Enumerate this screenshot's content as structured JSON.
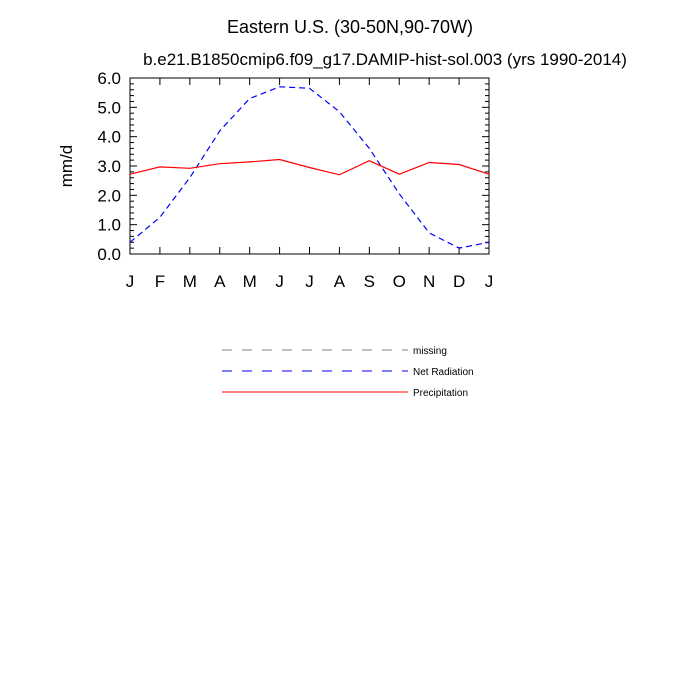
{
  "chart_data": {
    "type": "line",
    "title": "Eastern U.S. (30-50N,90-70W)",
    "subtitle": "b.e21.B1850cmip6.f09_g17.DAMIP-hist-sol.003 (yrs 1990-2014)",
    "ylabel": "mm/d",
    "xlabel": "",
    "categories": [
      "J",
      "F",
      "M",
      "A",
      "M",
      "J",
      "J",
      "A",
      "S",
      "O",
      "N",
      "D",
      "J"
    ],
    "ylim": [
      0,
      6
    ],
    "yticks": [
      "0.0",
      "1.0",
      "2.0",
      "3.0",
      "4.0",
      "5.0",
      "6.0"
    ],
    "grid": false,
    "legend_position": "below",
    "series": [
      {
        "name": "Net Radiation",
        "color": "#0000ff",
        "dash": "dashed",
        "values": [
          0.4,
          1.25,
          2.6,
          4.2,
          5.3,
          5.7,
          5.65,
          4.85,
          3.6,
          2.05,
          0.72,
          0.2,
          0.4
        ]
      },
      {
        "name": "Precipitation",
        "color": "#ff0000",
        "dash": "solid",
        "values": [
          2.72,
          2.97,
          2.92,
          3.08,
          3.14,
          3.22,
          2.95,
          2.7,
          3.18,
          2.72,
          3.12,
          3.05,
          2.72
        ]
      }
    ],
    "legend": [
      {
        "label": "missing",
        "color": "#808080",
        "dash": "dashed"
      },
      {
        "label": "Net Radiation",
        "color": "#0000ff",
        "dash": "dashed"
      },
      {
        "label": "Precipitation",
        "color": "#ff0000",
        "dash": "solid"
      }
    ]
  }
}
